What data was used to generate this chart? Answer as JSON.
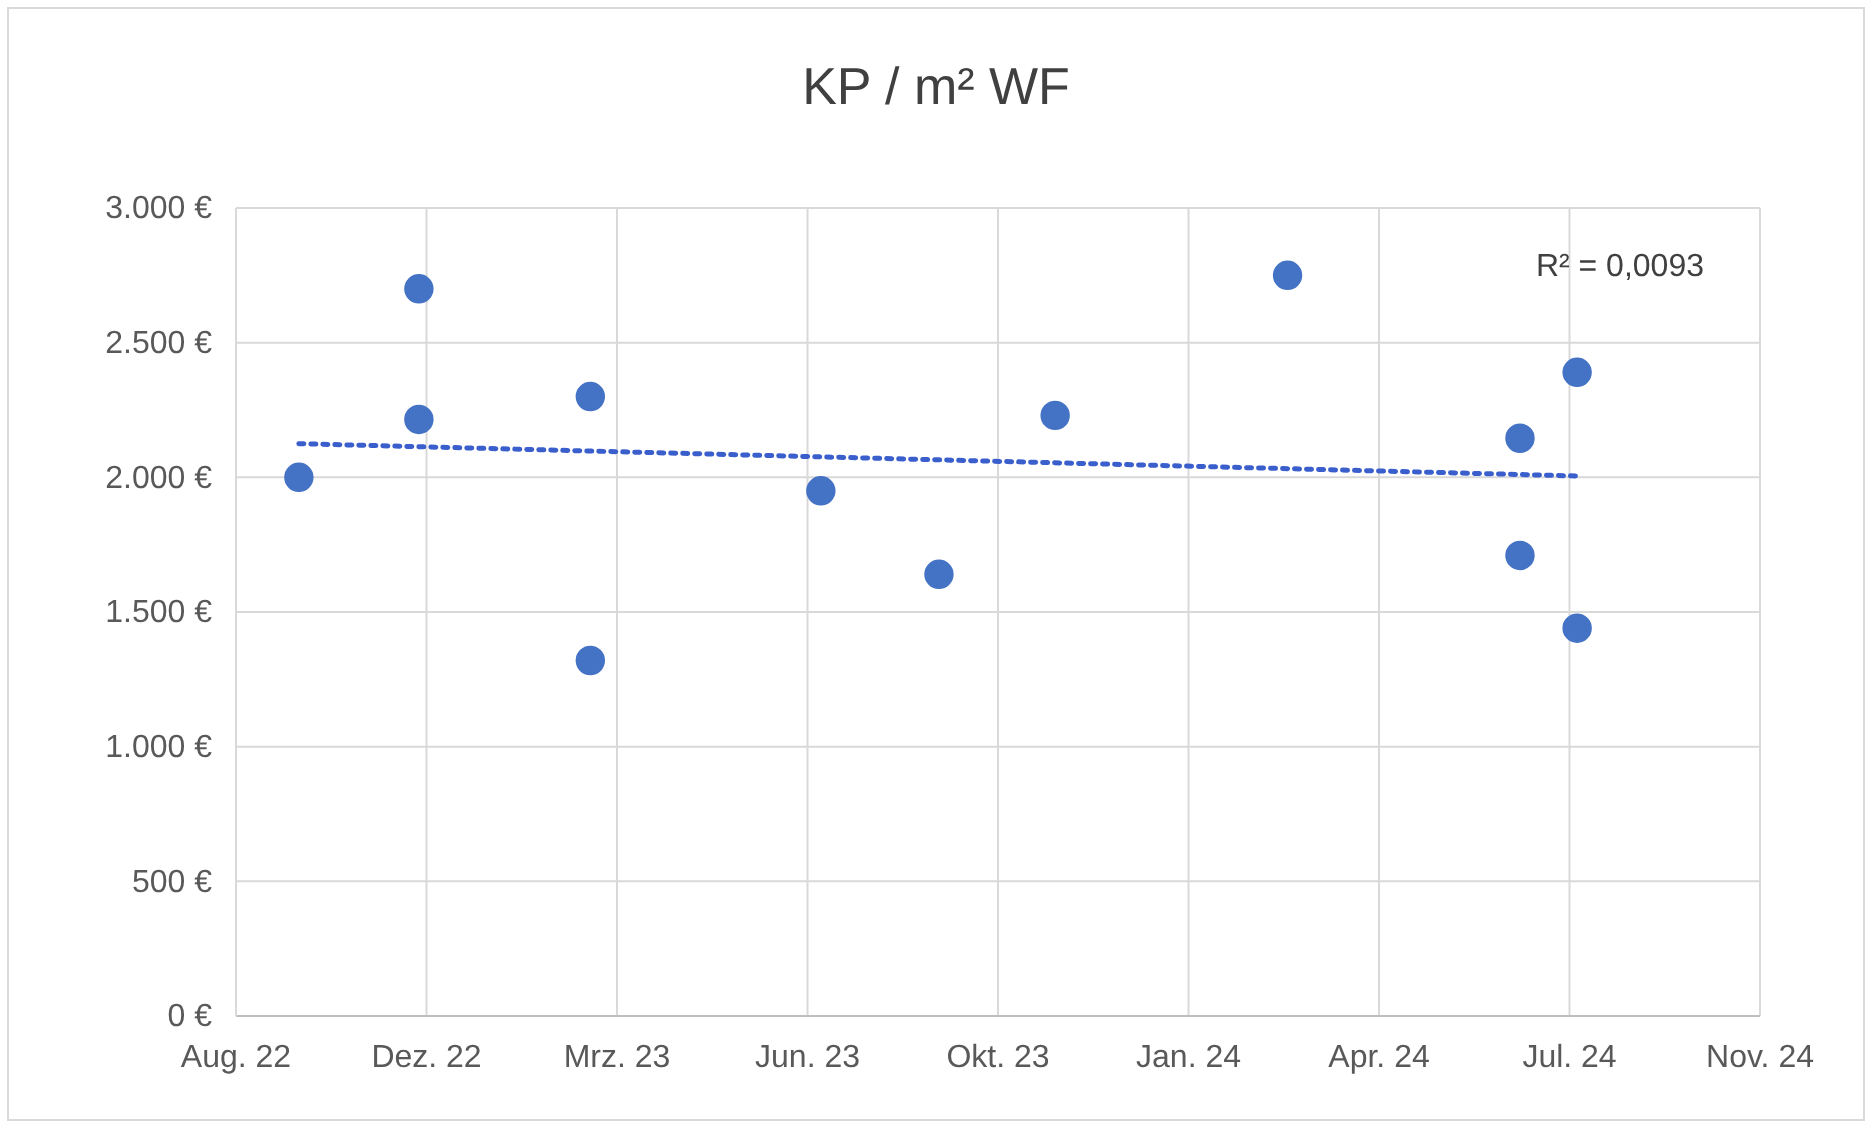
{
  "chart_data": {
    "type": "scatter",
    "title": "KP / m² WF",
    "xlim": [
      "2022-08-31",
      "2024-11-08"
    ],
    "xticks": [
      {
        "value": "2022-08-31",
        "label": "Aug. 22"
      },
      {
        "value": "2022-12-09",
        "label": "Dez. 22"
      },
      {
        "value": "2023-03-19",
        "label": "Mrz. 23"
      },
      {
        "value": "2023-06-27",
        "label": "Jun. 23"
      },
      {
        "value": "2023-10-05",
        "label": "Okt. 23"
      },
      {
        "value": "2024-01-13",
        "label": "Jan. 24"
      },
      {
        "value": "2024-04-22",
        "label": "Apr. 24"
      },
      {
        "value": "2024-07-31",
        "label": "Jul. 24"
      },
      {
        "value": "2024-11-08",
        "label": "Nov. 24"
      }
    ],
    "ylim": [
      0,
      3000
    ],
    "yticks": [
      {
        "value": 0,
        "label": "0 €"
      },
      {
        "value": 500,
        "label": "500 €"
      },
      {
        "value": 1000,
        "label": "1.000 €"
      },
      {
        "value": 1500,
        "label": "1.500 €"
      },
      {
        "value": 2000,
        "label": "2.000 €"
      },
      {
        "value": 2500,
        "label": "2.500 €"
      },
      {
        "value": 3000,
        "label": "3.000 €"
      }
    ],
    "grid": true,
    "marker": "circle",
    "series": [
      {
        "color": "#4472c4",
        "x": [
          "2022-10-03",
          "2022-12-05",
          "2022-12-05",
          "2023-03-05",
          "2023-03-05",
          "2023-07-04",
          "2023-09-04",
          "2023-11-04",
          "2024-03-05",
          "2024-07-05",
          "2024-07-05",
          "2024-08-04",
          "2024-08-04"
        ],
        "values": [
          2000,
          2700,
          2215,
          2300,
          1320,
          1950,
          1640,
          2230,
          2750,
          2145,
          1710,
          2390,
          1440
        ]
      },
      {
        "type": "line",
        "color": "#3a5fcd",
        "line_style": "dotted",
        "marker": "none",
        "x": [
          "2022-10-03",
          "2024-08-04"
        ],
        "values": [
          2125,
          2005
        ]
      }
    ],
    "annotations": [
      "R² = 0,0093"
    ]
  }
}
